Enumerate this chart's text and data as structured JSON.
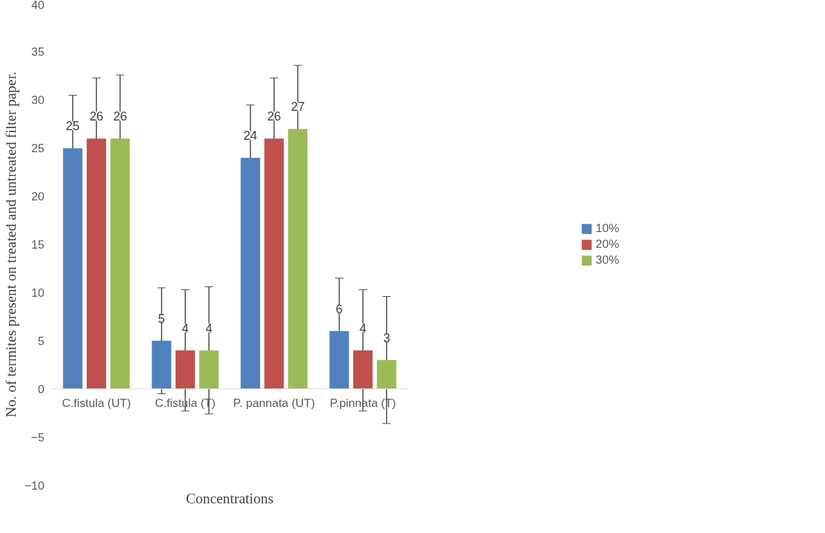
{
  "chart_data": {
    "type": "bar",
    "xlabel": "Concentrations",
    "ylabel": "No. of termites present on treated and untreated filter paper.",
    "categories": [
      "C.fistula (UT)",
      "C.fistula (T)",
      "P. pannata (UT)",
      "P.pinnata (T)"
    ],
    "series": [
      {
        "name": "10%",
        "color": "#4f81bd",
        "values": [
          25,
          5,
          24,
          6
        ],
        "errors": [
          5.5,
          5.5,
          5.5,
          5.5
        ]
      },
      {
        "name": "20%",
        "color": "#c0504d",
        "values": [
          26,
          4,
          26,
          4
        ],
        "errors": [
          6.3,
          6.3,
          6.3,
          6.3
        ]
      },
      {
        "name": "30%",
        "color": "#9bbb59",
        "values": [
          26,
          4,
          27,
          3
        ],
        "errors": [
          6.6,
          6.6,
          6.6,
          6.6
        ]
      }
    ],
    "ylim": [
      -10,
      40
    ],
    "yticks": [
      -10,
      -5,
      0,
      5,
      10,
      15,
      20,
      25,
      30,
      35,
      40
    ],
    "data_labels": true,
    "grid": false,
    "legend": "right"
  }
}
